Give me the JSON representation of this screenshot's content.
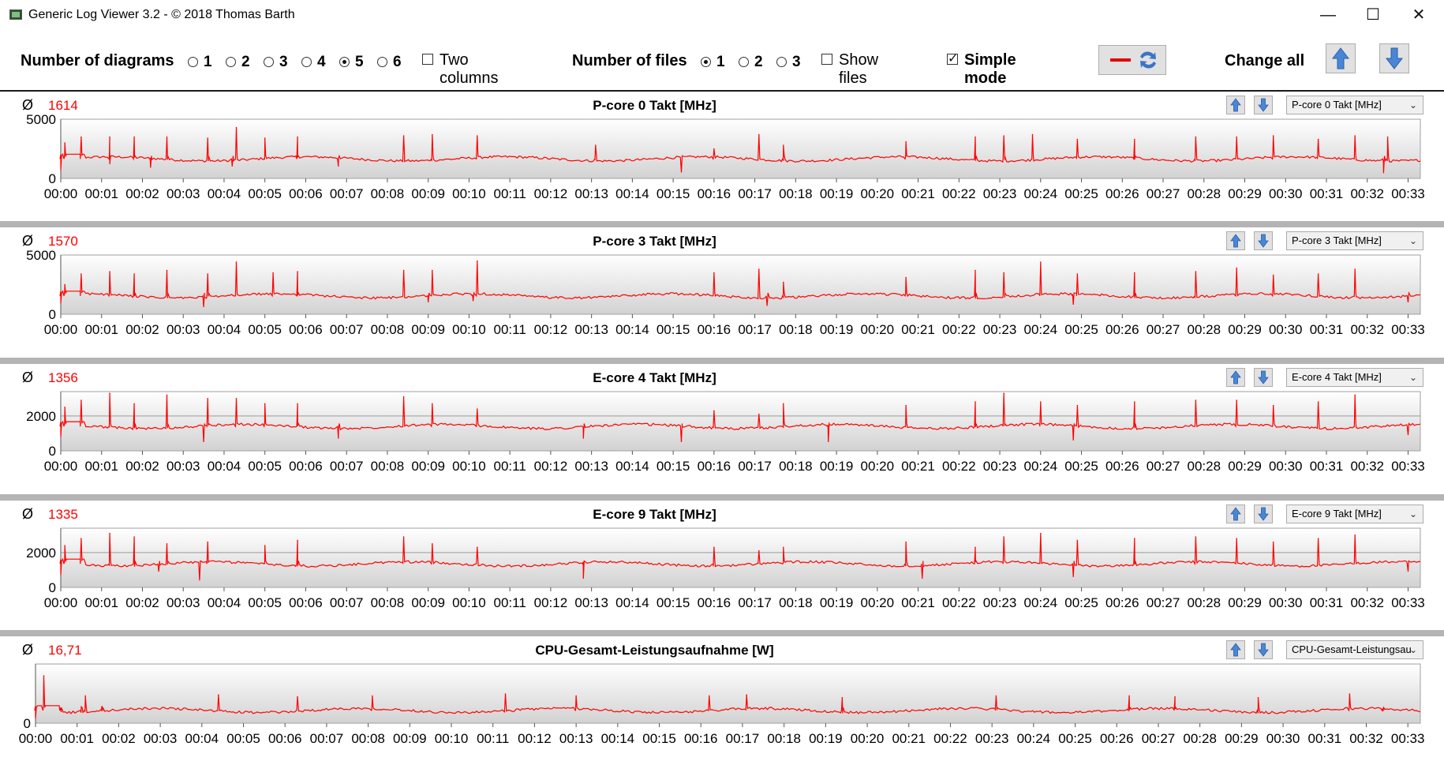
{
  "window": {
    "title": "Generic Log Viewer 3.2 - © 2018 Thomas Barth",
    "minimize_icon": "minimize-icon",
    "maximize_icon": "maximize-icon",
    "close_icon": "close-icon"
  },
  "toolbar": {
    "num_diagrams_label": "Number of diagrams",
    "diagram_options": [
      "1",
      "2",
      "3",
      "4",
      "5",
      "6"
    ],
    "diagram_selected": "5",
    "two_columns_label": "Two columns",
    "two_columns_checked": false,
    "num_files_label": "Number of files",
    "file_options": [
      "1",
      "2",
      "3"
    ],
    "file_selected": "1",
    "show_files_label": "Show files",
    "show_files_checked": false,
    "simple_mode_label": "Simple mode",
    "simple_mode_checked": true,
    "change_all_label": "Change all",
    "reset_icon": "refresh-icon",
    "up_icon": "arrow-up-icon",
    "down_icon": "arrow-down-icon"
  },
  "colors": {
    "series": "#ff0000",
    "accent": "#4a7ecf"
  },
  "avg_symbol": "Ø",
  "x_ticks": [
    "00:00",
    "00:01",
    "00:02",
    "00:03",
    "00:04",
    "00:05",
    "00:06",
    "00:07",
    "00:08",
    "00:09",
    "00:10",
    "00:11",
    "00:12",
    "00:13",
    "00:14",
    "00:15",
    "00:16",
    "00:17",
    "00:18",
    "00:19",
    "00:20",
    "00:21",
    "00:22",
    "00:23",
    "00:24",
    "00:25",
    "00:26",
    "00:27",
    "00:28",
    "00:29",
    "00:30",
    "00:31",
    "00:32",
    "00:33"
  ],
  "chart_data": [
    {
      "type": "line",
      "title": "P-core 0 Takt [MHz]",
      "average": "1614",
      "dropdown": "P-core 0 Takt [MHz]",
      "y_ticks": [
        "5000",
        "0"
      ],
      "ylim": [
        0,
        5000
      ],
      "grid_values": [],
      "x_range_minutes": [
        0,
        33.3
      ],
      "baseline": 1650,
      "spikes_min": [
        0.1,
        0.5,
        1.2,
        1.8,
        2.6,
        3.6,
        4.3,
        5.0,
        5.8,
        8.4,
        9.1,
        10.2,
        13.1,
        16.0,
        17.1,
        17.7,
        20.7,
        22.4,
        23.1,
        23.8,
        24.9,
        26.3,
        27.8,
        28.8,
        29.7,
        30.8,
        31.7,
        32.5
      ],
      "spike_values": [
        3000,
        3500,
        3500,
        3500,
        3500,
        3400,
        4300,
        3400,
        3500,
        3600,
        3700,
        3600,
        2800,
        2500,
        3700,
        2800,
        3100,
        3500,
        3600,
        3700,
        3300,
        3300,
        3500,
        3500,
        3600,
        3300,
        3600,
        3500
      ],
      "dips_min": [
        0.0,
        1.2,
        2.2,
        4.2,
        6.8,
        15.2,
        32.4
      ],
      "dip_values": [
        700,
        1200,
        900,
        1000,
        1000,
        500,
        450
      ]
    },
    {
      "type": "line",
      "title": "P-core 3 Takt [MHz]",
      "average": "1570",
      "dropdown": "P-core 3 Takt [MHz]",
      "y_ticks": [
        "5000",
        "0"
      ],
      "ylim": [
        0,
        5000
      ],
      "grid_values": [],
      "x_range_minutes": [
        0,
        33.3
      ],
      "baseline": 1550,
      "spikes_min": [
        0.1,
        0.5,
        1.2,
        1.8,
        2.6,
        3.6,
        4.3,
        5.2,
        5.8,
        8.4,
        9.1,
        10.2,
        16.0,
        17.1,
        17.7,
        20.7,
        22.4,
        23.1,
        24.0,
        24.9,
        26.3,
        27.8,
        28.8,
        29.7,
        30.8,
        31.7
      ],
      "spike_values": [
        2500,
        3400,
        3600,
        3400,
        3700,
        3400,
        4400,
        3500,
        3600,
        3700,
        3700,
        4500,
        3500,
        3800,
        2700,
        3100,
        3700,
        3500,
        4400,
        3400,
        3500,
        3600,
        3900,
        3300,
        3400,
        3800
      ],
      "dips_min": [
        0.0,
        3.5,
        9.0,
        10.1,
        17.3,
        24.8,
        33.0
      ],
      "dip_values": [
        900,
        600,
        1000,
        1100,
        700,
        800,
        1000
      ]
    },
    {
      "type": "line",
      "title": "E-core 4 Takt [MHz]",
      "average": "1356",
      "dropdown": "E-core 4 Takt [MHz]",
      "y_ticks": [
        "2000",
        "0"
      ],
      "ylim": [
        0,
        3400
      ],
      "grid_values": [
        2000
      ],
      "x_range_minutes": [
        0,
        33.3
      ],
      "baseline": 1400,
      "spikes_min": [
        0.1,
        0.5,
        1.2,
        1.8,
        2.6,
        3.6,
        4.3,
        5.0,
        5.8,
        8.4,
        9.1,
        10.2,
        16.0,
        17.1,
        17.7,
        20.7,
        22.4,
        23.1,
        24.0,
        24.9,
        26.3,
        27.8,
        28.8,
        29.7,
        30.8,
        31.7
      ],
      "spike_values": [
        2500,
        2900,
        3300,
        2700,
        3200,
        3000,
        3000,
        2700,
        2700,
        3100,
        2700,
        2400,
        2300,
        2100,
        2700,
        2600,
        2800,
        3300,
        2800,
        2600,
        2800,
        2900,
        2900,
        2600,
        2800,
        3200
      ],
      "dips_min": [
        0.0,
        3.5,
        6.8,
        12.8,
        15.2,
        18.8,
        24.8,
        33.0
      ],
      "dip_values": [
        800,
        500,
        700,
        700,
        500,
        500,
        600,
        900
      ]
    },
    {
      "type": "line",
      "title": "E-core 9 Takt [MHz]",
      "average": "1335",
      "dropdown": "E-core 9 Takt [MHz]",
      "y_ticks": [
        "2000",
        "0"
      ],
      "ylim": [
        0,
        3400
      ],
      "grid_values": [
        2000
      ],
      "x_range_minutes": [
        0,
        33.3
      ],
      "baseline": 1350,
      "spikes_min": [
        0.1,
        0.5,
        1.2,
        1.8,
        2.6,
        3.6,
        5.0,
        5.8,
        8.4,
        9.1,
        10.2,
        16.0,
        17.1,
        17.7,
        20.7,
        22.4,
        23.1,
        24.0,
        24.9,
        26.3,
        27.8,
        28.8,
        29.7,
        30.8,
        31.7
      ],
      "spike_values": [
        2400,
        2800,
        3100,
        2900,
        2500,
        2600,
        2400,
        2700,
        2900,
        2500,
        2300,
        2300,
        2100,
        2300,
        2600,
        2300,
        2900,
        3100,
        2700,
        2800,
        2900,
        2800,
        2600,
        2800,
        3000
      ],
      "dips_min": [
        0.0,
        2.4,
        3.4,
        12.8,
        21.1,
        24.8,
        33.0
      ],
      "dip_values": [
        700,
        900,
        400,
        500,
        500,
        600,
        900
      ]
    },
    {
      "type": "line",
      "title": "CPU-Gesamt-Leistungsaufnahme [W]",
      "average": "16,71",
      "dropdown": "CPU-Gesamt-Leistungsau",
      "y_ticks": [
        "0"
      ],
      "ylim": [
        0,
        65
      ],
      "grid_values": [],
      "x_range_minutes": [
        0,
        33.3
      ],
      "baseline": 14,
      "spikes_min": [
        0.2,
        1.2,
        4.4,
        6.3,
        8.1,
        11.3,
        13.0,
        16.2,
        17.1,
        19.4,
        23.1,
        26.3,
        27.4,
        29.4,
        31.6
      ],
      "spike_values": [
        52,
        30,
        31,
        29,
        30,
        32,
        30,
        30,
        31,
        28,
        30,
        30,
        29,
        28,
        32
      ],
      "dips_min": [
        0.0,
        0.6,
        1.1,
        1.6,
        32.4
      ],
      "dip_values": [
        5,
        16,
        18,
        19,
        13
      ]
    }
  ]
}
